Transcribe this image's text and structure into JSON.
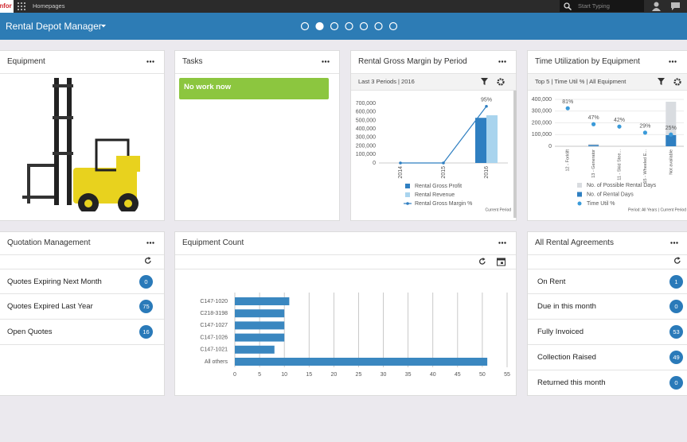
{
  "top_bar": {
    "logo": "infor",
    "homepages": "Homepages",
    "search_placeholder": "Start Typing"
  },
  "header": {
    "title": "Rental Depot Manager"
  },
  "equipment": {
    "title": "Equipment"
  },
  "tasks": {
    "title": "Tasks",
    "message": "No work now"
  },
  "quotation_management": {
    "title": "Quotation Management",
    "items": [
      {
        "label": "Quotes Expiring Next Month",
        "count": 0
      },
      {
        "label": "Quotes Expired Last Year",
        "count": 75
      },
      {
        "label": "Open Quotes",
        "count": 16
      }
    ]
  },
  "all_rental_agreements": {
    "title": "All Rental Agreements",
    "items": [
      {
        "label": "On Rent",
        "count": 1
      },
      {
        "label": "Due in this month",
        "count": 0
      },
      {
        "label": "Fully Invoiced",
        "count": 53
      },
      {
        "label": "Collection Raised",
        "count": 49
      },
      {
        "label": "Returned this month",
        "count": 0
      }
    ]
  },
  "chart_data": [
    {
      "type": "bar",
      "title": "Rental Gross Margin by Period",
      "subtitle": "Last 3 Periods | 2016",
      "note": "Current Period",
      "categories": [
        "2014",
        "2015",
        "2016"
      ],
      "series": [
        {
          "name": "Rental Gross Profit",
          "color": "#2f7fc1",
          "values": [
            0,
            0,
            530000
          ]
        },
        {
          "name": "Rental Revenue",
          "color": "#a9d4ee",
          "values": [
            0,
            0,
            560000
          ]
        },
        {
          "name": "Rental Gross Margin %",
          "type": "line",
          "axis": "y2",
          "color": "#2f7fc1",
          "values": [
            0,
            0,
            95
          ],
          "value_labels": [
            null,
            null,
            "95%"
          ]
        }
      ],
      "ylim": [
        0,
        700000
      ],
      "yticks": [
        0,
        {
          "value": 100000,
          "label": "100,000"
        },
        {
          "value": 200000,
          "label": "200,000"
        },
        {
          "value": 300000,
          "label": "300,000"
        },
        {
          "value": 400000,
          "label": "400,000"
        },
        {
          "value": 500000,
          "label": "500,000"
        },
        {
          "value": 600000,
          "label": "600,000"
        },
        {
          "value": 700000,
          "label": "700,000"
        }
      ],
      "y2lim": [
        0,
        100
      ],
      "grid": false,
      "bar_mode": "grouped"
    },
    {
      "type": "bar",
      "title": "Time Utilization by Equipment",
      "subtitle": "Top 5 | Time Util % | All Equipment",
      "note": "Period: All Years | Current Period",
      "categories": [
        "12 - Forklift",
        "13 - Generator",
        "11 - Skid Stee...",
        "15 - Wheeled E...",
        "Not available"
      ],
      "series": [
        {
          "name": "No. of Possible Rental Days",
          "color": "#d9dce0",
          "values": [
            0,
            20000,
            0,
            0,
            380000
          ]
        },
        {
          "name": "No. of Rental Days",
          "color": "#2f7fc1",
          "values": [
            0,
            10000,
            0,
            0,
            95000
          ]
        },
        {
          "name": "Time Util %",
          "type": "scatter",
          "axis": "y2",
          "color": "#3a9ad9",
          "values": [
            81,
            47,
            42,
            29,
            25
          ],
          "value_labels": [
            "81%",
            "47%",
            "42%",
            "29%",
            "25%"
          ]
        }
      ],
      "ylim": [
        0,
        400000
      ],
      "yticks": [
        0,
        {
          "value": 100000,
          "label": "100,000"
        },
        {
          "value": 200000,
          "label": "200,000"
        },
        {
          "value": 300000,
          "label": "300,000"
        },
        {
          "value": 400000,
          "label": "400,000"
        }
      ],
      "y2lim": [
        0,
        100
      ],
      "grid": true,
      "bar_mode": "overlap"
    },
    {
      "type": "bar",
      "horizontal": true,
      "title": "Equipment Count",
      "categories": [
        "C147-1020",
        "C218-3198",
        "C147-1027",
        "C147-1026",
        "C147-1021",
        "All others"
      ],
      "values": [
        11,
        10,
        10,
        10,
        8,
        51
      ],
      "color": "#3a87c0",
      "xlim": [
        0,
        55
      ],
      "xticks": [
        0,
        5,
        10,
        15,
        20,
        25,
        30,
        35,
        40,
        45,
        50,
        55
      ],
      "grid": true
    }
  ]
}
